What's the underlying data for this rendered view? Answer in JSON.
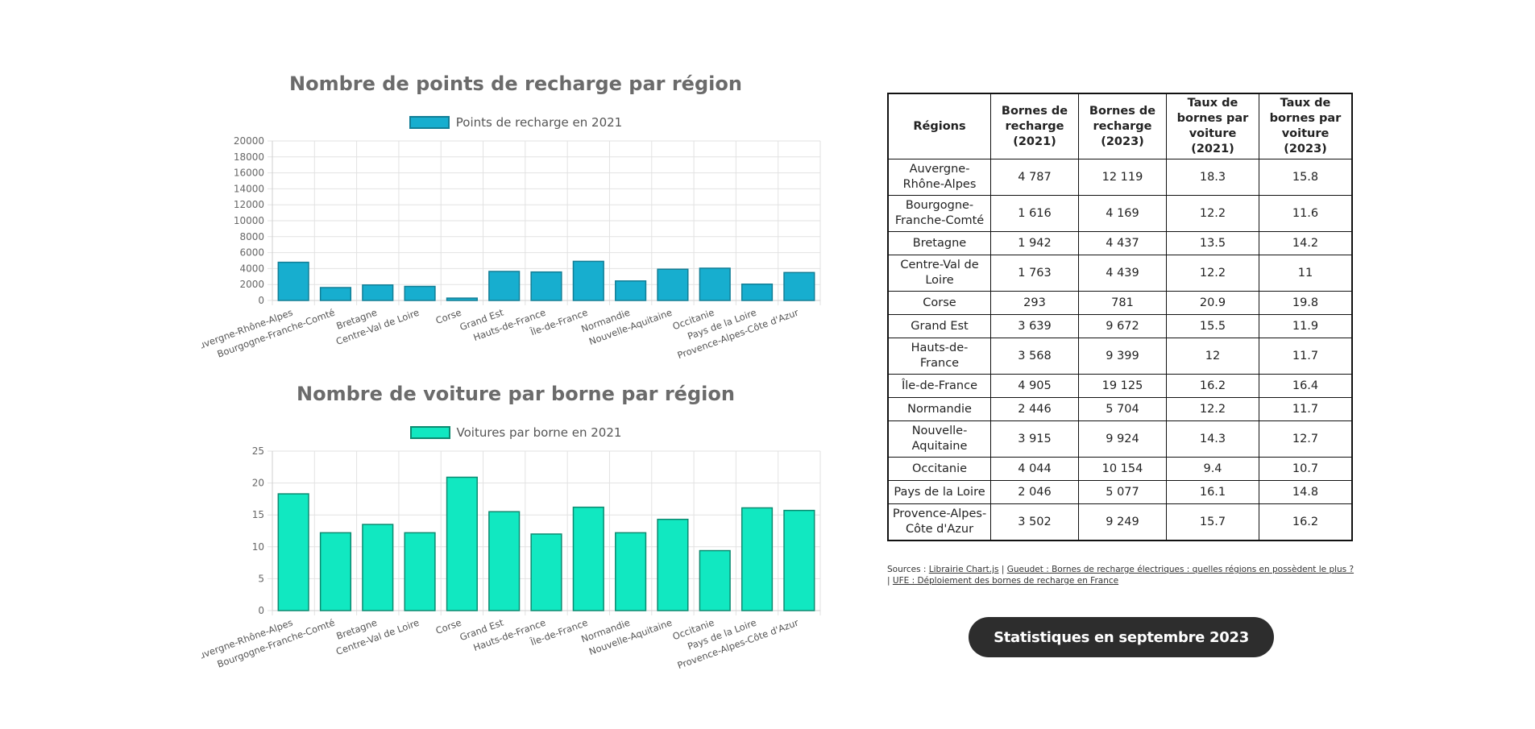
{
  "chart_data": [
    {
      "type": "bar",
      "title": "Nombre de points de recharge par région",
      "legend": "Points de recharge en 2021",
      "color": "#17aecf",
      "border_color": "#127e96",
      "categories": [
        "Auvergne-Rhône-Alpes",
        "Bourgogne-Franche-Comté",
        "Bretagne",
        "Centre-Val de Loire",
        "Corse",
        "Grand Est",
        "Hauts-de-France",
        "Île-de-France",
        "Normandie",
        "Nouvelle-Aquitaine",
        "Occitanie",
        "Pays de la Loire",
        "Provence-Alpes-Côte d'Azur"
      ],
      "values": [
        4787,
        1616,
        1942,
        1763,
        293,
        3639,
        3568,
        4905,
        2446,
        3915,
        4044,
        2046,
        3502
      ],
      "ylim": [
        0,
        20000
      ],
      "yticks": [
        0,
        2000,
        4000,
        6000,
        8000,
        10000,
        12000,
        14000,
        16000,
        18000,
        20000
      ],
      "ytick_labels": [
        "0",
        "2000",
        "4000",
        "6000",
        "8000",
        "10000",
        "12000",
        "14000",
        "16000",
        "18000",
        "20000"
      ],
      "xlabel": "",
      "ylabel": "",
      "grid": true
    },
    {
      "type": "bar",
      "title": "Nombre de voiture par borne par région",
      "legend": "Voitures par borne en 2021",
      "color": "#11e8c1",
      "border_color": "#0c8a70",
      "categories": [
        "Auvergne-Rhône-Alpes",
        "Bourgogne-Franche-Comté",
        "Bretagne",
        "Centre-Val de Loire",
        "Corse",
        "Grand Est",
        "Hauts-de-France",
        "Île-de-France",
        "Normandie",
        "Nouvelle-Aquitaine",
        "Occitanie",
        "Pays de la Loire",
        "Provence-Alpes-Côte d'Azur"
      ],
      "values": [
        18.3,
        12.2,
        13.5,
        12.2,
        20.9,
        15.5,
        12,
        16.2,
        12.2,
        14.3,
        9.4,
        16.1,
        15.7
      ],
      "ylim": [
        0,
        25
      ],
      "yticks": [
        0,
        5,
        10,
        15,
        20,
        25
      ],
      "ytick_labels": [
        "0",
        "5",
        "10",
        "15",
        "20",
        "25"
      ],
      "xlabel": "",
      "ylabel": "",
      "grid": true
    }
  ],
  "table": {
    "headers": [
      "Régions",
      "Bornes de recharge (2021)",
      "Bornes de recharge (2023)",
      "Taux de bornes par voiture (2021)",
      "Taux de bornes par voiture (2023)"
    ],
    "rows": [
      [
        "Auvergne-Rhône-Alpes",
        "4 787",
        "12 119",
        "18.3",
        "15.8"
      ],
      [
        "Bourgogne-Franche-Comté",
        "1 616",
        "4 169",
        "12.2",
        "11.6"
      ],
      [
        "Bretagne",
        "1 942",
        "4 437",
        "13.5",
        "14.2"
      ],
      [
        "Centre-Val de Loire",
        "1 763",
        "4 439",
        "12.2",
        "11"
      ],
      [
        "Corse",
        "293",
        "781",
        "20.9",
        "19.8"
      ],
      [
        "Grand Est",
        "3 639",
        "9 672",
        "15.5",
        "11.9"
      ],
      [
        "Hauts-de-France",
        "3 568",
        "9 399",
        "12",
        "11.7"
      ],
      [
        "Île-de-France",
        "4 905",
        "19 125",
        "16.2",
        "16.4"
      ],
      [
        "Normandie",
        "2 446",
        "5 704",
        "12.2",
        "11.7"
      ],
      [
        "Nouvelle-Aquitaine",
        "3 915",
        "9 924",
        "14.3",
        "12.7"
      ],
      [
        "Occitanie",
        "4 044",
        "10 154",
        "9.4",
        "10.7"
      ],
      [
        "Pays de la Loire",
        "2 046",
        "5 077",
        "16.1",
        "14.8"
      ],
      [
        "Provence-Alpes-Côte d'Azur",
        "3 502",
        "9 249",
        "15.7",
        "16.2"
      ]
    ]
  },
  "sources": {
    "prefix": "Sources :",
    "link1": "Librairie Chart.js",
    "sep1": "|",
    "link2": "Gueudet : Bornes de recharge électriques : quelles régions en possèdent le plus ?",
    "sep2": "|",
    "link3": "UFE : Déploiement des bornes de recharge en France"
  },
  "button": {
    "label": "Statistiques en septembre 2023"
  }
}
